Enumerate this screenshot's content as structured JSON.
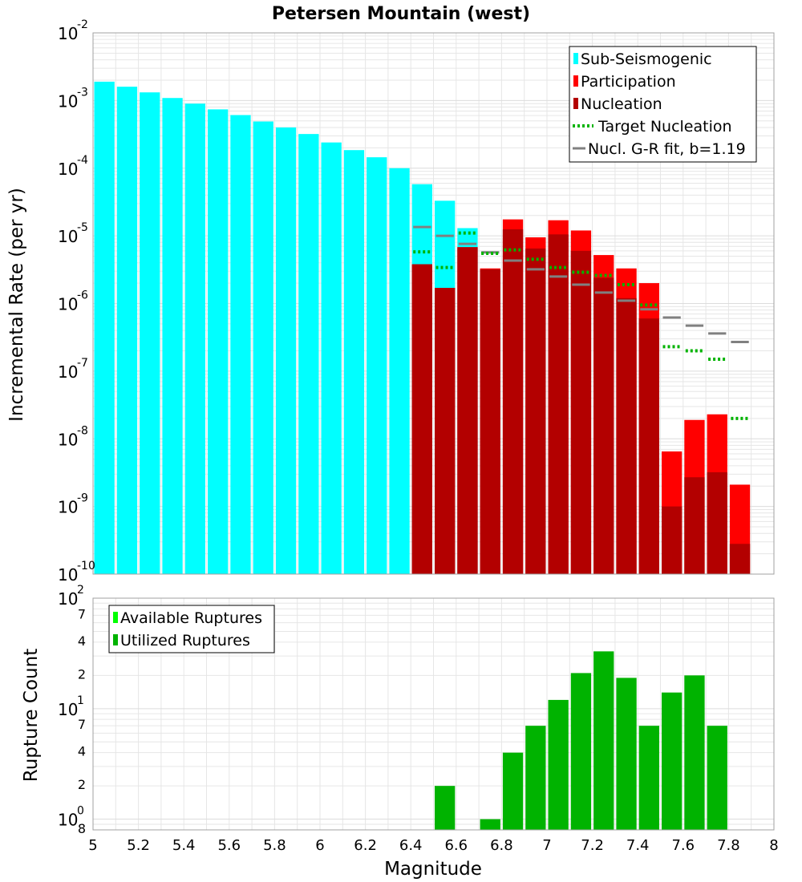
{
  "chart_data": [
    {
      "type": "bar",
      "title": "Petersen Mountain (west)",
      "xlabel": "",
      "ylabel": "Incremental Rate (per yr)",
      "yscale": "log",
      "xlim": [
        5,
        8
      ],
      "ylim": [
        1e-10,
        0.01
      ],
      "bin_width": 0.1,
      "y_tick_labels": [
        {
          "base": "10",
          "exp": "-10",
          "value": 1e-10
        },
        {
          "base": "10",
          "exp": "-9",
          "value": 1e-09
        },
        {
          "base": "10",
          "exp": "-8",
          "value": 1e-08
        },
        {
          "base": "10",
          "exp": "-7",
          "value": 1e-07
        },
        {
          "base": "10",
          "exp": "-6",
          "value": 1e-06
        },
        {
          "base": "10",
          "exp": "-5",
          "value": 1e-05
        },
        {
          "base": "10",
          "exp": "-4",
          "value": 0.0001
        },
        {
          "base": "10",
          "exp": "-3",
          "value": 0.001
        },
        {
          "base": "10",
          "exp": "-2",
          "value": 0.01
        }
      ],
      "legend": {
        "position": "top-right",
        "entries": [
          {
            "label": "Sub-Seismogenic",
            "color": "#00ffff",
            "style": "bar"
          },
          {
            "label": "Participation",
            "color": "#ff0000",
            "style": "bar"
          },
          {
            "label": "Nucleation",
            "color": "#b30000",
            "style": "bar"
          },
          {
            "label": "Target Nucleation",
            "color": "#00b300",
            "style": "dotted"
          },
          {
            "label": "Nucl. G-R fit, b=1.19",
            "color": "#808080",
            "style": "line"
          }
        ]
      },
      "series": [
        {
          "name": "Sub-Seismogenic",
          "color": "#00ffff",
          "x": [
            5.05,
            5.15,
            5.25,
            5.35,
            5.45,
            5.55,
            5.65,
            5.75,
            5.85,
            5.95,
            6.05,
            6.15,
            6.25,
            6.35,
            6.45,
            6.55,
            6.65
          ],
          "values": [
            0.0019,
            0.0016,
            0.00132,
            0.00109,
            0.0009,
            0.00074,
            0.00061,
            0.00049,
            0.0004,
            0.00032,
            0.00024,
            0.000185,
            0.000145,
            0.0001,
            5.8e-05,
            3.3e-05,
            1.3e-05
          ]
        },
        {
          "name": "Participation",
          "color": "#ff0000",
          "x": [
            6.45,
            6.55,
            6.65,
            6.75,
            6.85,
            6.95,
            7.05,
            7.15,
            7.25,
            7.35,
            7.45,
            7.55,
            7.65,
            7.75,
            7.85
          ],
          "values": [
            3.8e-06,
            1.7e-06,
            6.8e-06,
            3.3e-06,
            1.75e-05,
            9.5e-06,
            1.7e-05,
            1.2e-05,
            5.2e-06,
            3.3e-06,
            2e-06,
            6.5e-09,
            1.9e-08,
            2.3e-08,
            2.1e-09
          ]
        },
        {
          "name": "Nucleation",
          "color": "#b30000",
          "x": [
            6.45,
            6.55,
            6.65,
            6.75,
            6.85,
            6.95,
            7.05,
            7.15,
            7.25,
            7.35,
            7.45,
            7.55,
            7.65,
            7.75,
            7.85
          ],
          "values": [
            3.8e-06,
            1.7e-06,
            6.8e-06,
            3.2e-06,
            1.25e-05,
            6.5e-06,
            1.05e-05,
            6e-06,
            2.4e-06,
            1.2e-06,
            6e-07,
            1e-09,
            2.7e-09,
            3.2e-09,
            2.8e-10
          ]
        },
        {
          "name": "Target Nucleation",
          "color": "#00b300",
          "x": [
            6.45,
            6.55,
            6.65,
            6.75,
            6.85,
            6.95,
            7.05,
            7.15,
            7.25,
            7.35,
            7.45,
            7.55,
            7.65,
            7.75,
            7.85
          ],
          "values": [
            5.8e-06,
            3.4e-06,
            1.1e-05,
            5.5e-06,
            6.2e-06,
            4.5e-06,
            3.4e-06,
            2.9e-06,
            2.6e-06,
            1.9e-06,
            9.5e-07,
            2.3e-07,
            2e-07,
            1.5e-07,
            2e-08
          ]
        },
        {
          "name": "Nucl. G-R fit, b=1.19",
          "color": "#808080",
          "x": [
            6.45,
            6.55,
            6.65,
            6.75,
            6.85,
            6.95,
            7.05,
            7.15,
            7.25,
            7.35,
            7.45,
            7.55,
            7.65,
            7.75,
            7.85
          ],
          "values": [
            1.35e-05,
            1e-05,
            7.6e-06,
            5.7e-06,
            4.3e-06,
            3.2e-06,
            2.5e-06,
            1.9e-06,
            1.45e-06,
            1.1e-06,
            8.2e-07,
            6.2e-07,
            4.7e-07,
            3.6e-07,
            2.7e-07
          ]
        }
      ]
    },
    {
      "type": "bar",
      "title": "",
      "xlabel": "Magnitude",
      "ylabel": "Rupture Count",
      "yscale": "log",
      "xlim": [
        5,
        8
      ],
      "ylim": [
        0.8,
        100
      ],
      "bin_width": 0.1,
      "x_tick_labels": [
        "5",
        "5.2",
        "5.4",
        "5.6",
        "5.8",
        "6",
        "6.2",
        "6.4",
        "6.6",
        "6.8",
        "7",
        "7.2",
        "7.4",
        "7.6",
        "7.8",
        "8"
      ],
      "y_tick_labels": [
        {
          "base": "10",
          "exp": "0",
          "value": 1
        },
        {
          "base": "10",
          "exp": "1",
          "value": 10
        },
        {
          "base": "10",
          "exp": "2",
          "value": 100
        }
      ],
      "y_minor_tick_labels": [
        {
          "label": "8",
          "value": 0.8
        },
        {
          "label": "2",
          "value": 2
        },
        {
          "label": "4",
          "value": 4
        },
        {
          "label": "7",
          "value": 7
        },
        {
          "label": "2",
          "value": 20
        },
        {
          "label": "4",
          "value": 40
        },
        {
          "label": "7",
          "value": 70
        }
      ],
      "legend": {
        "position": "top-left",
        "entries": [
          {
            "label": "Available Ruptures",
            "color": "#00ff00",
            "style": "bar"
          },
          {
            "label": "Utilized Ruptures",
            "color": "#00b300",
            "style": "bar"
          }
        ]
      },
      "series": [
        {
          "name": "Utilized Ruptures",
          "color": "#00b300",
          "x": [
            6.55,
            6.75,
            6.85,
            6.95,
            7.05,
            7.15,
            7.25,
            7.35,
            7.45,
            7.55,
            7.65,
            7.75
          ],
          "values": [
            2,
            1,
            4,
            7,
            12,
            21,
            33,
            19,
            7,
            14,
            20,
            7
          ]
        }
      ]
    }
  ]
}
